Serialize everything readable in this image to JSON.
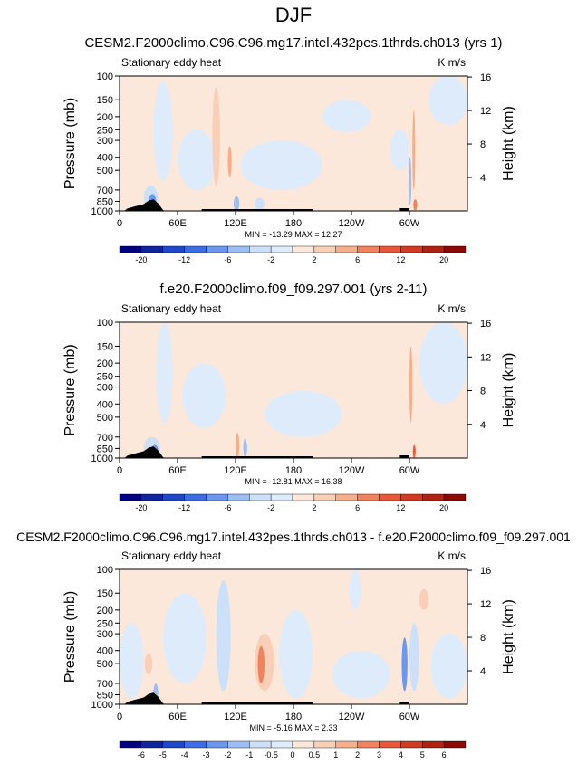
{
  "title": "DJF",
  "common": {
    "plot_label": "Stationary eddy heat",
    "units": "K m/s",
    "ylabel_left": "Pressure (mb)",
    "ylabel_right": "Height (km)",
    "pressure_ticks": [
      "100",
      "150",
      "200",
      "250",
      "300",
      "400",
      "500",
      "700",
      "850",
      "1000"
    ],
    "pressure_values": [
      100,
      150,
      200,
      250,
      300,
      400,
      500,
      700,
      850,
      1000
    ],
    "height_ticks": [
      "16",
      "12",
      "8",
      "4"
    ],
    "height_values": [
      16,
      12,
      8,
      4
    ],
    "lon_ticks": [
      "0",
      "60E",
      "120E",
      "180",
      "120W",
      "60W"
    ],
    "lon_values": [
      0,
      60,
      120,
      180,
      240,
      300
    ],
    "xlim": [
      0,
      360
    ],
    "ylim_mb": [
      1000,
      100
    ]
  },
  "colors": {
    "neg": [
      "#000080",
      "#10249b",
      "#1f48c9",
      "#3c6de5",
      "#6b97ef",
      "#9cbef5",
      "#cde0f9",
      "#deebfb"
    ],
    "pos": [
      "#fbe8da",
      "#f9d0b7",
      "#f7af8b",
      "#f2825c",
      "#e9573a",
      "#d33a22",
      "#b02211",
      "#8b0a05"
    ],
    "terrain": "#000000"
  },
  "chart_data": [
    {
      "type": "heatmap",
      "title": "CESM2.F2000climo.C96.C96.mg17.intel.432pes.1thrds.ch013 (yrs 1)",
      "stats": "MIN = -13.29  MAX =  12.27",
      "colorbar": {
        "labels": [
          "-20",
          "-12",
          "-6",
          "-2",
          "2",
          "6",
          "12",
          "20"
        ],
        "label_at_boundaries": [
          1,
          3,
          5,
          7,
          9,
          11,
          13,
          15
        ]
      },
      "min": -13.29,
      "max": 12.27
    },
    {
      "type": "heatmap",
      "title": "f.e20.F2000climo.f09_f09.297.001 (yrs 2-11)",
      "stats": "MIN = -12.81  MAX =  16.38",
      "colorbar": {
        "labels": [
          "-20",
          "-12",
          "-6",
          "-2",
          "2",
          "6",
          "12",
          "20"
        ],
        "label_at_boundaries": [
          1,
          3,
          5,
          7,
          9,
          11,
          13,
          15
        ]
      },
      "min": -12.81,
      "max": 16.38
    },
    {
      "type": "heatmap",
      "title": "CESM2.F2000climo.C96.C96.mg17.intel.432pes.1thrds.ch013 - f.e20.F2000climo.f09_f09.297.001",
      "stats": "MIN = -5.16  MAX =  2.33",
      "colorbar": {
        "labels": [
          "-6",
          "-5",
          "-4",
          "-3",
          "-2",
          "-1",
          "-0.5",
          "0",
          "0.5",
          "1",
          "2",
          "3",
          "4",
          "5",
          "6"
        ],
        "label_at_boundaries": [
          1,
          2,
          3,
          4,
          5,
          6,
          7,
          8,
          9,
          10,
          11,
          12,
          13,
          14,
          15
        ]
      },
      "min": -5.16,
      "max": 2.33
    }
  ]
}
